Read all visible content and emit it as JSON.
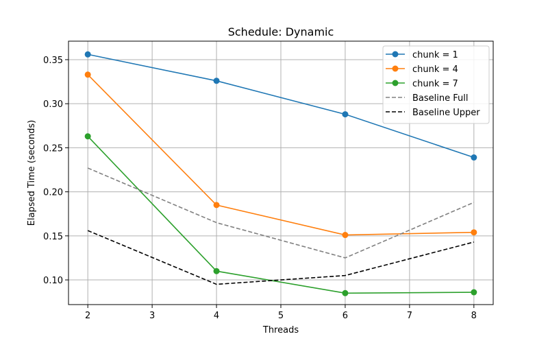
{
  "chart_data": {
    "type": "line",
    "title": "Schedule: Dynamic",
    "xlabel": "Threads",
    "ylabel": "Elapsed Time (seconds)",
    "xlim": [
      1.7,
      8.3
    ],
    "ylim": [
      0.072,
      0.371
    ],
    "xticks": [
      2,
      3,
      4,
      5,
      6,
      7,
      8
    ],
    "yticks": [
      0.1,
      0.15,
      0.2,
      0.25,
      0.3,
      0.35
    ],
    "xtick_labels": [
      "2",
      "3",
      "4",
      "5",
      "6",
      "7",
      "8"
    ],
    "ytick_labels": [
      "0.10",
      "0.15",
      "0.20",
      "0.25",
      "0.30",
      "0.35"
    ],
    "grid": true,
    "legend_position": "top-right",
    "series": [
      {
        "name": "chunk = 1",
        "color": "#1f77b4",
        "style": "solid",
        "marker": true,
        "x": [
          2,
          4,
          6,
          8
        ],
        "values": [
          0.356,
          0.326,
          0.288,
          0.239
        ]
      },
      {
        "name": "chunk = 4",
        "color": "#ff7f0e",
        "style": "solid",
        "marker": true,
        "x": [
          2,
          4,
          6,
          8
        ],
        "values": [
          0.333,
          0.185,
          0.151,
          0.154
        ]
      },
      {
        "name": "chunk = 7",
        "color": "#2ca02c",
        "style": "solid",
        "marker": true,
        "x": [
          2,
          4,
          6,
          8
        ],
        "values": [
          0.263,
          0.11,
          0.085,
          0.086
        ]
      },
      {
        "name": "Baseline Full",
        "color": "#808080",
        "style": "dashed",
        "marker": false,
        "x": [
          2,
          4,
          6,
          8
        ],
        "values": [
          0.227,
          0.165,
          0.125,
          0.188
        ]
      },
      {
        "name": "Baseline Upper",
        "color": "#000000",
        "style": "dashed",
        "marker": false,
        "x": [
          2,
          4,
          6,
          8
        ],
        "values": [
          0.156,
          0.095,
          0.105,
          0.143
        ]
      }
    ]
  }
}
